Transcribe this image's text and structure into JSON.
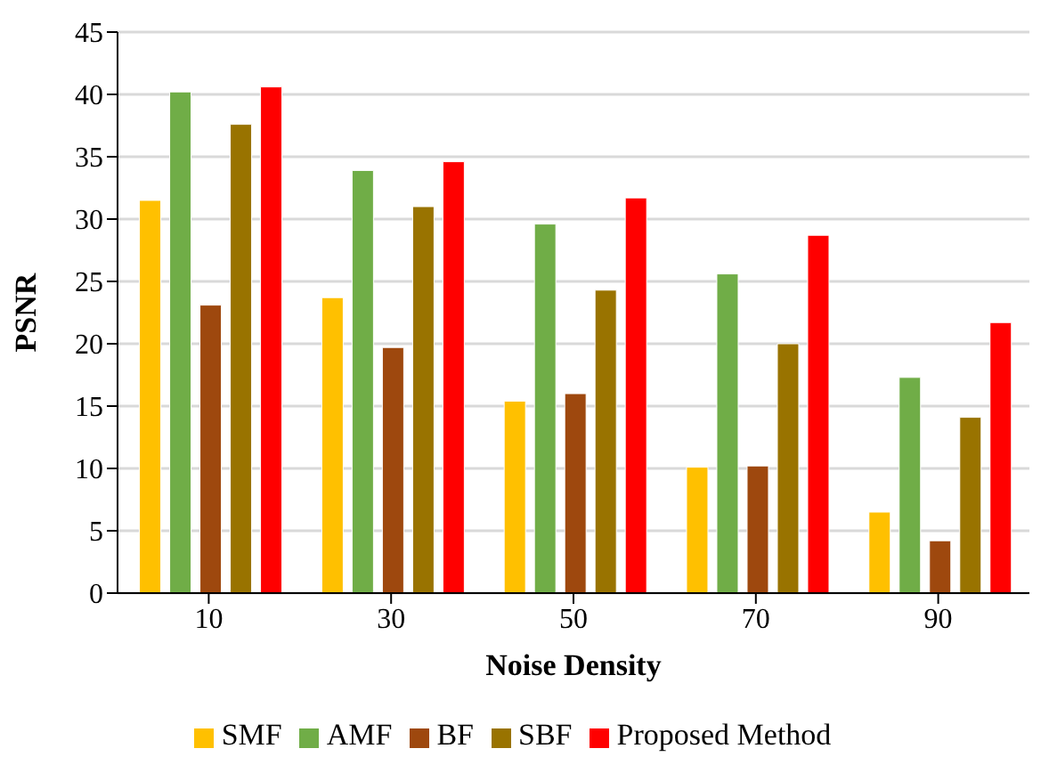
{
  "chart_data": {
    "type": "bar",
    "xlabel": "Noise Density",
    "ylabel": "PSNR",
    "categories": [
      "10",
      "30",
      "50",
      "70",
      "90"
    ],
    "series": [
      {
        "name": "SMF",
        "color": "#ffc000",
        "values": [
          31.5,
          23.7,
          15.4,
          10.1,
          6.5
        ]
      },
      {
        "name": "AMF",
        "color": "#70ad47",
        "values": [
          40.2,
          33.9,
          29.6,
          25.6,
          17.3
        ]
      },
      {
        "name": "BF",
        "color": "#9e480e",
        "values": [
          23.1,
          19.7,
          16.0,
          10.2,
          4.2
        ]
      },
      {
        "name": "SBF",
        "color": "#997300",
        "values": [
          37.6,
          31.0,
          24.3,
          20.0,
          14.1
        ]
      },
      {
        "name": "Proposed Method",
        "color": "#ff0000",
        "values": [
          40.6,
          34.6,
          31.7,
          28.7,
          21.7
        ]
      }
    ],
    "ylim": [
      0,
      45
    ],
    "yticks": [
      0,
      5,
      10,
      15,
      20,
      25,
      30,
      35,
      40,
      45
    ],
    "grid": "y",
    "legend": "bottom"
  }
}
